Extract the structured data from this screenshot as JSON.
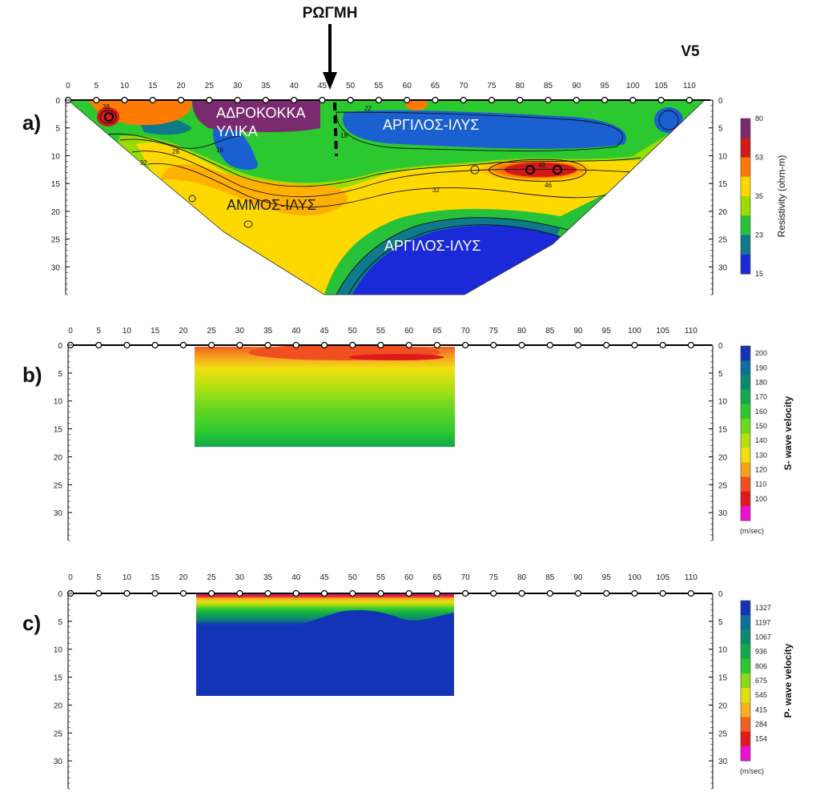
{
  "figure": {
    "fault_label": "ΡΩΓΜΗ",
    "profile_label": "V5"
  },
  "chart_data": [
    {
      "panel": "a)",
      "type": "heatmap",
      "x_ticks": [
        "0",
        "5",
        "10",
        "15",
        "20",
        "25",
        "30",
        "35",
        "40",
        "45",
        "50",
        "55",
        "60",
        "65",
        "70",
        "75",
        "80",
        "85",
        "90",
        "95",
        "100",
        "105",
        "110"
      ],
      "y_ticks": [
        "0",
        "5",
        "10",
        "15",
        "20",
        "25",
        "30"
      ],
      "xlim": [
        0,
        112
      ],
      "ylim": [
        0,
        35
      ],
      "colorbar": {
        "label": "Resistivity (ohm-m)",
        "ticks": [
          "80",
          "53",
          "35",
          "23",
          "15"
        ],
        "colors": [
          "#7a2a6e",
          "#d21a1a",
          "#ff7a00",
          "#ffd800",
          "#9bdc00",
          "#27c23a",
          "#0e7a8a",
          "#1a2ad8"
        ],
        "range": [
          15,
          80
        ]
      },
      "zones": [
        "ΑΔΡΟΚΟΚΚΑ",
        "ΥΛΙΚΑ",
        "ΑΡΓΙΛΟΣ-ΙΛΥΣ",
        "ΑΜΜΟΣ-ΙΛΥΣ",
        "ΑΡΓΙΛΟΣ-ΙΛΥΣ"
      ],
      "contour_labels": [
        "38",
        "22",
        "32",
        "28",
        "16",
        "18",
        "46",
        "48",
        "32"
      ]
    },
    {
      "panel": "b)",
      "type": "heatmap",
      "x_ticks": [
        "0",
        "5",
        "10",
        "15",
        "20",
        "25",
        "30",
        "35",
        "40",
        "45",
        "50",
        "55",
        "60",
        "65",
        "70",
        "75",
        "80",
        "85",
        "90",
        "95",
        "100",
        "105",
        "110"
      ],
      "y_ticks": [
        "0",
        "5",
        "10",
        "15",
        "20",
        "25",
        "30"
      ],
      "xlim": [
        0,
        112
      ],
      "ylim": [
        0,
        35
      ],
      "data_extent_x": [
        22,
        68
      ],
      "data_extent_y": [
        0,
        18
      ],
      "colorbar": {
        "label": "S- wave velocity",
        "unit": "(m/sec)",
        "ticks": [
          "200",
          "190",
          "180",
          "170",
          "160",
          "150",
          "140",
          "130",
          "120",
          "110",
          "100"
        ],
        "colors": [
          "#1434b8",
          "#0f6e9a",
          "#0d8a6e",
          "#14a84a",
          "#2cc830",
          "#6cd820",
          "#b2e010",
          "#f0e010",
          "#f6a020",
          "#f05020",
          "#e01820",
          "#ee10d0"
        ],
        "range": [
          100,
          200
        ]
      }
    },
    {
      "panel": "c)",
      "type": "heatmap",
      "x_ticks": [
        "0",
        "5",
        "10",
        "15",
        "20",
        "25",
        "30",
        "35",
        "40",
        "45",
        "50",
        "55",
        "60",
        "65",
        "70",
        "75",
        "80",
        "85",
        "90",
        "95",
        "100",
        "105",
        "110"
      ],
      "y_ticks": [
        "0",
        "5",
        "10",
        "15",
        "20",
        "25",
        "30"
      ],
      "xlim": [
        0,
        112
      ],
      "ylim": [
        0,
        35
      ],
      "data_extent_x": [
        22,
        68
      ],
      "data_extent_y": [
        0,
        18
      ],
      "colorbar": {
        "label": "P- wave velocity",
        "unit": "(m/sec)",
        "ticks": [
          "1327",
          "1197",
          "1067",
          "936",
          "806",
          "675",
          "545",
          "415",
          "284",
          "154"
        ],
        "colors": [
          "#1434b8",
          "#0f6e9a",
          "#0d8a6e",
          "#14a84a",
          "#2cc830",
          "#8ad818",
          "#e0e010",
          "#f8b020",
          "#f06020",
          "#e01820",
          "#ee10d0"
        ],
        "range": [
          154,
          1327
        ]
      }
    }
  ]
}
